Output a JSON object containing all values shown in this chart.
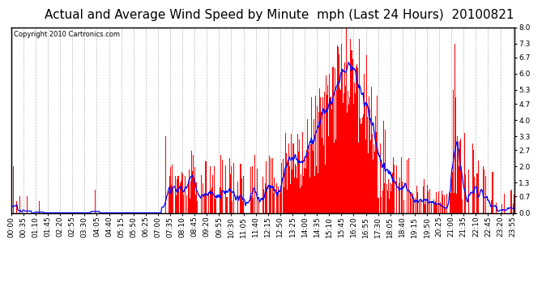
{
  "title": "Actual and Average Wind Speed by Minute  mph (Last 24 Hours)  20100821",
  "copyright_text": "Copyright 2010 Cartronics.com",
  "background_color": "#ffffff",
  "plot_bg_color": "#ffffff",
  "grid_color": "#aaaaaa",
  "bar_color": "#ff0000",
  "line_color": "#0000ff",
  "yticks": [
    0.0,
    0.7,
    1.3,
    2.0,
    2.7,
    3.3,
    4.0,
    4.7,
    5.3,
    6.0,
    6.7,
    7.3,
    8.0
  ],
  "ylim": [
    0,
    8.0
  ],
  "total_minutes": 1440,
  "xtick_interval": 35,
  "title_fontsize": 11,
  "tick_fontsize": 6.5,
  "copyright_fontsize": 6
}
